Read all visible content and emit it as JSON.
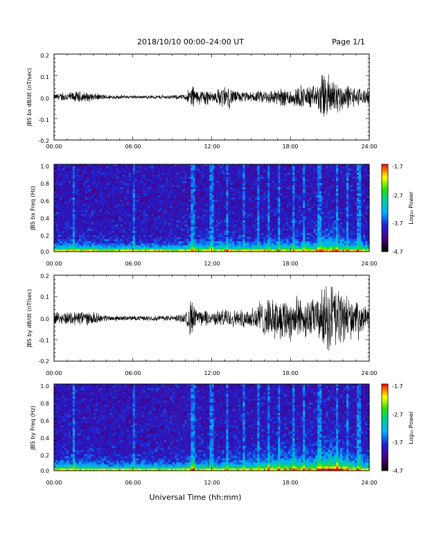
{
  "header": {
    "title": "2018/10/10   00:00–24:00 UT",
    "page": "Page 1/1"
  },
  "footer": {
    "xlabel": "Universal Time (hh:mm)"
  },
  "colorbar_labels": [
    "-1.7",
    "-2.7",
    "-3.7",
    "-4.7"
  ],
  "colorbar_title": "Log₁₀ Power",
  "colors": {
    "waveform": "#000000",
    "background": "#ffffff"
  },
  "chart_data": [
    {
      "type": "line",
      "ylabel": "JBS bx dB/dt (nT/sec)",
      "xlabel": "",
      "x_ticks": [
        "00:00",
        "06:00",
        "12:00",
        "18:00",
        "24:00"
      ],
      "y_ticks": [
        "0.2",
        "0.1",
        "0.0",
        "-0.1",
        "-0.2"
      ],
      "xlim": [
        0,
        24
      ],
      "ylim": [
        -0.2,
        0.2
      ],
      "series": [
        {
          "x": [
            0,
            1,
            2,
            3,
            4,
            5,
            6,
            7,
            8,
            9,
            10,
            10.5,
            11,
            11.5,
            12,
            13,
            14,
            15,
            16,
            17,
            18,
            19,
            19.5,
            20,
            20.5,
            21,
            21.5,
            22,
            23,
            24
          ],
          "y_amp": [
            0.015,
            0.025,
            0.03,
            0.02,
            0.012,
            0.01,
            0.008,
            0.008,
            0.01,
            0.01,
            0.015,
            0.07,
            0.025,
            0.05,
            0.025,
            0.06,
            0.03,
            0.025,
            0.035,
            0.045,
            0.05,
            0.055,
            0.06,
            0.06,
            0.13,
            0.12,
            0.09,
            0.07,
            0.05,
            0.04
          ]
        }
      ]
    },
    {
      "type": "heatmap",
      "ylabel": "JBS bx Freq (Hz)",
      "xlabel": "",
      "x_ticks": [
        "00:00",
        "06:00",
        "12:00",
        "18:00",
        "24:00"
      ],
      "y_ticks": [
        "1.0",
        "0.8",
        "0.6",
        "0.4",
        "0.2",
        "0.0"
      ],
      "xlim": [
        0,
        24
      ],
      "ylim": [
        0,
        1.0
      ],
      "colorbar": {
        "min": -4.7,
        "max": -1.7,
        "label": "Log10 Power"
      }
    },
    {
      "type": "line",
      "ylabel": "JBS by dB/dt (nT/sec)",
      "xlabel": "",
      "x_ticks": [
        "00:00",
        "06:00",
        "12:00",
        "18:00",
        "24:00"
      ],
      "y_ticks": [
        "0.2",
        "0.1",
        "0.0",
        "-0.1",
        "-0.2"
      ],
      "xlim": [
        0,
        24
      ],
      "ylim": [
        -0.2,
        0.2
      ],
      "series": [
        {
          "x": [
            0,
            1,
            2,
            3,
            4,
            5,
            6,
            7,
            8,
            9,
            10,
            10.5,
            11,
            11.5,
            12,
            13,
            14,
            15,
            16,
            17,
            18,
            19,
            19.5,
            20,
            20.5,
            21,
            21.5,
            22,
            23,
            24
          ],
          "y_amp": [
            0.03,
            0.035,
            0.04,
            0.03,
            0.015,
            0.012,
            0.012,
            0.012,
            0.015,
            0.015,
            0.025,
            0.11,
            0.03,
            0.05,
            0.03,
            0.05,
            0.04,
            0.06,
            0.09,
            0.1,
            0.12,
            0.1,
            0.1,
            0.1,
            0.16,
            0.19,
            0.18,
            0.12,
            0.08,
            0.05
          ]
        }
      ]
    },
    {
      "type": "heatmap",
      "ylabel": "JBS by Freq (Hz)",
      "xlabel": "",
      "x_ticks": [
        "00:00",
        "06:00",
        "12:00",
        "18:00",
        "24:00"
      ],
      "y_ticks": [
        "1.0",
        "0.8",
        "0.6",
        "0.4",
        "0.2",
        "0.0"
      ],
      "xlim": [
        0,
        24
      ],
      "ylim": [
        0,
        1.0
      ],
      "colorbar": {
        "min": -4.7,
        "max": -1.7,
        "label": "Log10 Power"
      }
    }
  ]
}
